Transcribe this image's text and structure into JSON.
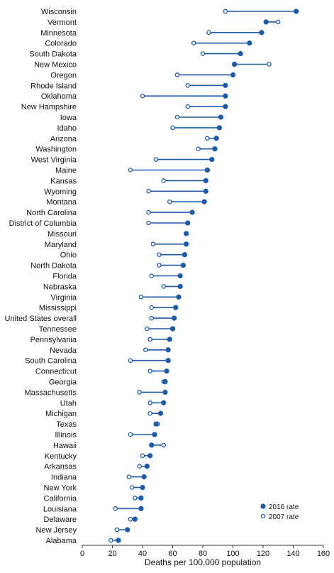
{
  "chart_data": {
    "type": "dumbbell",
    "xlabel": "Deaths per 100,000 population",
    "xlim": [
      0,
      160
    ],
    "xticks": [
      0,
      20,
      40,
      60,
      80,
      100,
      120,
      140,
      160
    ],
    "series": [
      {
        "name": "2016 rate",
        "color": "#1f5aa6",
        "marker": "filled"
      },
      {
        "name": "2007 rate",
        "color": "#1f5aa6",
        "marker": "open"
      }
    ],
    "legend": {
      "position": "bottom-right",
      "items": [
        "2016 rate",
        "2007 rate"
      ]
    },
    "categories": [
      "Wisconsin",
      "Vermont",
      "Minnesota",
      "Colorado",
      "South Dakota",
      "New Mexico",
      "Oregon",
      "Rhode Island",
      "Oklahoma",
      "New Hampshire",
      "Iowa",
      "Idaho",
      "Arizona",
      "Washington",
      "West Virginia",
      "Maine",
      "Kansas",
      "Wyoming",
      "Montana",
      "North Carolina",
      "District of Columbia",
      "Missouri",
      "Maryland",
      "Ohio",
      "North Dakota",
      "Florida",
      "Nebraska",
      "Virginia",
      "Mississippi",
      "United States overall",
      "Tennessee",
      "Pennsylvania",
      "Nevada",
      "South Carolina",
      "Connecticut",
      "Georgia",
      "Massachusetts",
      "Utah",
      "Michigan",
      "Texas",
      "Illinois",
      "Hawaii",
      "Kentucky",
      "Arkansas",
      "Indiana",
      "New York",
      "California",
      "Louisiana",
      "Delaware",
      "New Jersey",
      "Alabama"
    ],
    "rate_2016": [
      142,
      122,
      119,
      111,
      105,
      101,
      100,
      95,
      95,
      95,
      92,
      91,
      89,
      88,
      86,
      83,
      82,
      82,
      81,
      73,
      70,
      69,
      69,
      68,
      67,
      65,
      65,
      64,
      62,
      61,
      60,
      58,
      57,
      57,
      56,
      55,
      55,
      54,
      52,
      49,
      48,
      46,
      45,
      43,
      41,
      40,
      39,
      39,
      35,
      30,
      24
    ],
    "rate_2007": [
      95,
      130,
      84,
      74,
      80,
      124,
      63,
      70,
      40,
      70,
      63,
      60,
      83,
      77,
      49,
      32,
      54,
      44,
      58,
      44,
      44,
      69,
      47,
      51,
      51,
      46,
      54,
      39,
      46,
      46,
      43,
      45,
      42,
      32,
      45,
      54,
      38,
      45,
      45,
      50,
      32,
      54,
      40,
      38,
      31,
      33,
      35,
      22,
      32,
      23,
      19
    ]
  }
}
